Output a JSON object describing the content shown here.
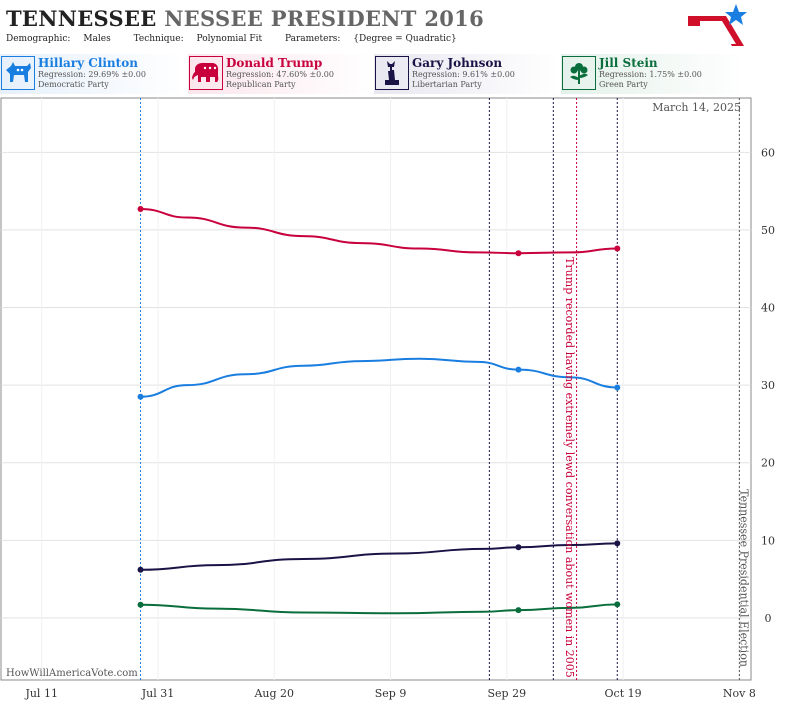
{
  "header": {
    "title_part1": "TENNESSEE",
    "title_part2": "NESSEE PRESIDENT 2016",
    "demographic_label": "Demographic:",
    "demographic_value": "Males",
    "technique_label": "Technique:",
    "technique_value": "Polynomial Fit",
    "parameters_label": "Parameters:",
    "parameters_value": "{Degree = Quadratic}"
  },
  "candidates": [
    {
      "name": "Hillary Clinton",
      "regression": "Regression: 29.69% ±0.00",
      "party": "Democratic Party",
      "color": "#1a7ee0",
      "icon": "donkey-icon"
    },
    {
      "name": "Donald Trump",
      "regression": "Regression: 47.60% ±0.00",
      "party": "Republican Party",
      "color": "#c8003c",
      "icon": "elephant-icon"
    },
    {
      "name": "Gary Johnson",
      "regression": "Regression: 9.61% ±0.00",
      "party": "Libertarian Party",
      "color": "#1a1446",
      "icon": "liberty-icon"
    },
    {
      "name": "Jill Stein",
      "regression": "Regression: 1.75% ±0.00",
      "party": "Green Party",
      "color": "#0a6e3c",
      "icon": "flower-icon"
    }
  ],
  "date_stamp": "March 14, 2025",
  "watermark": "HowWillAmericaVote.com",
  "chart_data": {
    "type": "line",
    "x_ticks": [
      "Jul 11",
      "Jul 31",
      "Aug 20",
      "Sep 9",
      "Sep 29",
      "Oct 19",
      "Nov 8"
    ],
    "y_ticks": [
      0,
      10,
      20,
      30,
      40,
      50,
      60
    ],
    "ylim": [
      -8,
      67
    ],
    "xlim": [
      "2016-07-04",
      "2016-11-10"
    ],
    "series": [
      {
        "name": "Donald Trump",
        "color": "#c8003c",
        "points": [
          [
            "2016-07-28",
            52.7
          ],
          [
            "2016-08-05",
            51.6
          ],
          [
            "2016-08-15",
            50.3
          ],
          [
            "2016-08-25",
            49.2
          ],
          [
            "2016-09-04",
            48.3
          ],
          [
            "2016-09-14",
            47.6
          ],
          [
            "2016-09-24",
            47.1
          ],
          [
            "2016-10-01",
            47.0
          ],
          [
            "2016-10-10",
            47.1
          ],
          [
            "2016-10-18",
            47.6
          ]
        ],
        "markers": [
          [
            "2016-07-28",
            52.7
          ],
          [
            "2016-10-01",
            47.0
          ],
          [
            "2016-10-18",
            47.6
          ]
        ]
      },
      {
        "name": "Hillary Clinton",
        "color": "#1a7ee0",
        "points": [
          [
            "2016-07-28",
            28.5
          ],
          [
            "2016-08-05",
            30.0
          ],
          [
            "2016-08-15",
            31.4
          ],
          [
            "2016-08-25",
            32.5
          ],
          [
            "2016-09-04",
            33.1
          ],
          [
            "2016-09-14",
            33.4
          ],
          [
            "2016-09-24",
            33.0
          ],
          [
            "2016-10-01",
            32.0
          ],
          [
            "2016-10-10",
            31.0
          ],
          [
            "2016-10-18",
            29.7
          ]
        ],
        "markers": [
          [
            "2016-07-28",
            28.5
          ],
          [
            "2016-10-01",
            32.0
          ],
          [
            "2016-10-18",
            29.7
          ]
        ]
      },
      {
        "name": "Gary Johnson",
        "color": "#1a1446",
        "points": [
          [
            "2016-07-28",
            6.2
          ],
          [
            "2016-08-10",
            6.8
          ],
          [
            "2016-08-25",
            7.6
          ],
          [
            "2016-09-10",
            8.3
          ],
          [
            "2016-09-25",
            8.9
          ],
          [
            "2016-10-01",
            9.1
          ],
          [
            "2016-10-10",
            9.4
          ],
          [
            "2016-10-18",
            9.6
          ]
        ],
        "markers": [
          [
            "2016-07-28",
            6.2
          ],
          [
            "2016-10-01",
            9.1
          ],
          [
            "2016-10-18",
            9.6
          ]
        ]
      },
      {
        "name": "Jill Stein",
        "color": "#0a6e3c",
        "points": [
          [
            "2016-07-28",
            1.7
          ],
          [
            "2016-08-10",
            1.2
          ],
          [
            "2016-08-25",
            0.7
          ],
          [
            "2016-09-10",
            0.6
          ],
          [
            "2016-09-25",
            0.8
          ],
          [
            "2016-10-01",
            1.0
          ],
          [
            "2016-10-10",
            1.3
          ],
          [
            "2016-10-18",
            1.75
          ]
        ],
        "markers": [
          [
            "2016-07-28",
            1.7
          ],
          [
            "2016-10-01",
            1.0
          ],
          [
            "2016-10-18",
            1.75
          ]
        ]
      }
    ],
    "vertical_lines": [
      {
        "date": "2016-07-28",
        "color": "#1a7ee0"
      },
      {
        "date": "2016-09-26",
        "color": "#1a1446"
      },
      {
        "date": "2016-10-07",
        "color": "#1a1446"
      },
      {
        "date": "2016-10-11",
        "color": "#c8003c"
      },
      {
        "date": "2016-10-18",
        "color": "#1a1446"
      },
      {
        "date": "2016-11-08",
        "color": "#555555"
      }
    ],
    "annotations": [
      {
        "text": "Trump recorded having extremely lewd conversation about women in 2005",
        "date": "2016-10-09",
        "color": "#c8003c"
      },
      {
        "text": "Tennessee Presidential Election",
        "date": "2016-11-08",
        "color": "#555555"
      }
    ],
    "grid": true
  }
}
